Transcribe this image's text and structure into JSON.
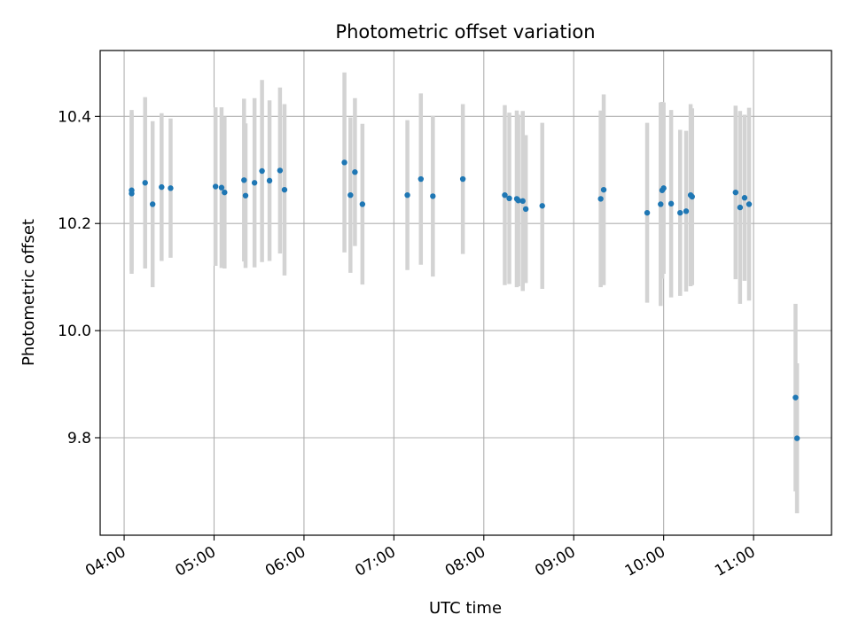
{
  "chart_data": {
    "type": "scatter",
    "title": "Photometric offset variation",
    "xlabel": "UTC time",
    "ylabel": "Photometric offset",
    "grid": true,
    "legend": "none",
    "x_tick_labels": [
      "04:00",
      "05:00",
      "06:00",
      "07:00",
      "08:00",
      "09:00",
      "10:00",
      "11:00"
    ],
    "y_tick_labels": [
      "9.8",
      "10.0",
      "10.2",
      "10.4"
    ],
    "x_ticks": [
      "04:00",
      "05:00",
      "06:00",
      "07:00",
      "08:00",
      "09:00",
      "10:00",
      "11:00"
    ],
    "y_ticks": [
      9.8,
      10.0,
      10.2,
      10.4
    ],
    "xlim": [
      "03:44",
      "11:52"
    ],
    "ylim": [
      9.618,
      10.523
    ],
    "colors": {
      "marker": "#1f77b4",
      "errorbar": "#d3d3d3",
      "grid": "#b0b0b0"
    },
    "series": [
      {
        "x": [
          "04:05",
          "04:05",
          "04:14",
          "04:19",
          "04:25",
          "04:31",
          "05:01",
          "05:05",
          "05:07",
          "05:20",
          "05:21",
          "05:27",
          "05:32",
          "05:37",
          "05:44",
          "05:47",
          "06:27",
          "06:31",
          "06:34",
          "06:39",
          "07:09",
          "07:18",
          "07:26",
          "07:46",
          "08:14",
          "08:17",
          "08:22",
          "08:23",
          "08:26",
          "08:28",
          "08:39",
          "09:18",
          "09:20",
          "09:49",
          "09:58",
          "09:59",
          "10:00",
          "10:05",
          "10:11",
          "10:15",
          "10:18",
          "10:19",
          "10:48",
          "10:51",
          "10:54",
          "10:57",
          "11:28",
          "11:29"
        ],
        "y": [
          10.262,
          10.256,
          10.276,
          10.236,
          10.268,
          10.266,
          10.269,
          10.267,
          10.258,
          10.281,
          10.252,
          10.276,
          10.298,
          10.28,
          10.299,
          10.263,
          10.314,
          10.253,
          10.296,
          10.236,
          10.253,
          10.283,
          10.251,
          10.283,
          10.253,
          10.247,
          10.246,
          10.243,
          10.242,
          10.227,
          10.233,
          10.246,
          10.263,
          10.22,
          10.236,
          10.262,
          10.266,
          10.237,
          10.22,
          10.223,
          10.253,
          10.25,
          10.258,
          10.23,
          10.248,
          10.236,
          9.875,
          9.799
        ],
        "yerr": [
          0.15,
          0.15,
          0.16,
          0.155,
          0.138,
          0.13,
          0.148,
          0.15,
          0.142,
          0.152,
          0.135,
          0.158,
          0.17,
          0.15,
          0.155,
          0.16,
          0.168,
          0.145,
          0.138,
          0.15,
          0.14,
          0.16,
          0.15,
          0.14,
          0.168,
          0.16,
          0.165,
          0.16,
          0.168,
          0.138,
          0.155,
          0.165,
          0.178,
          0.168,
          0.19,
          0.165,
          0.16,
          0.175,
          0.155,
          0.15,
          0.17,
          0.165,
          0.162,
          0.18,
          0.155,
          0.18,
          0.175,
          0.14
        ]
      }
    ]
  }
}
